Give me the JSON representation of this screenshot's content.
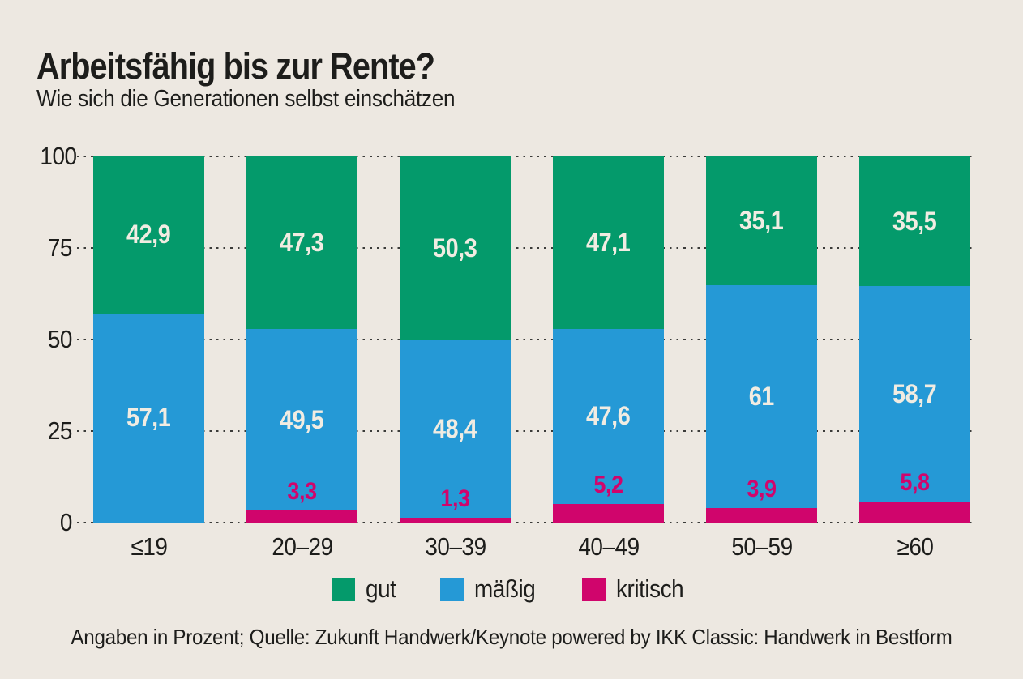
{
  "header": {
    "title": "Arbeitsfähig bis zur Rente?",
    "subtitle": "Wie sich die Generationen selbst einschätzen"
  },
  "chart_data": {
    "type": "bar",
    "stacked": true,
    "title": "Arbeitsfähig bis zur Rente?",
    "subtitle": "Wie sich die Generationen selbst einschätzen",
    "unit": "Prozent",
    "categories": [
      "≤19",
      "20–29",
      "30–39",
      "40–49",
      "50–59",
      "≥60"
    ],
    "series": [
      {
        "name": "gut",
        "color": "#049A6B",
        "values": [
          42.9,
          47.3,
          50.3,
          47.1,
          35.1,
          35.5
        ],
        "labels": [
          "42,9",
          "47,3",
          "50,3",
          "47,1",
          "35,1",
          "35,5"
        ]
      },
      {
        "name": "mäßig",
        "color": "#2599D6",
        "values": [
          57.1,
          49.5,
          48.4,
          47.6,
          61.0,
          58.7
        ],
        "labels": [
          "57,1",
          "49,5",
          "48,4",
          "47,6",
          "61",
          "58,7"
        ]
      },
      {
        "name": "kritisch",
        "color": "#D0056C",
        "values": [
          0,
          3.3,
          1.3,
          5.2,
          3.9,
          5.8
        ],
        "labels": [
          "",
          "3,3",
          "1,3",
          "5,2",
          "3,9",
          "5,8"
        ]
      }
    ],
    "ylim": [
      0,
      100
    ],
    "yticks": [
      0,
      25,
      50,
      75,
      100
    ],
    "grid": "dotted-horizontal",
    "legend_position": "bottom"
  },
  "legend": {
    "items": [
      {
        "label": "gut",
        "color": "#049A6B"
      },
      {
        "label": "mäßig",
        "color": "#2599D6"
      },
      {
        "label": "kritisch",
        "color": "#D0056C"
      }
    ]
  },
  "footer": {
    "text": "Angaben in Prozent; Quelle: Zukunft Handwerk/Keynote powered by IKK Classic: Handwerk in Bestform"
  },
  "colors": {
    "background": "#EDE8E1",
    "text": "#1D1D1B",
    "bar_value_label": "#F1ECE2",
    "grid_dots": "#3B3B39"
  }
}
